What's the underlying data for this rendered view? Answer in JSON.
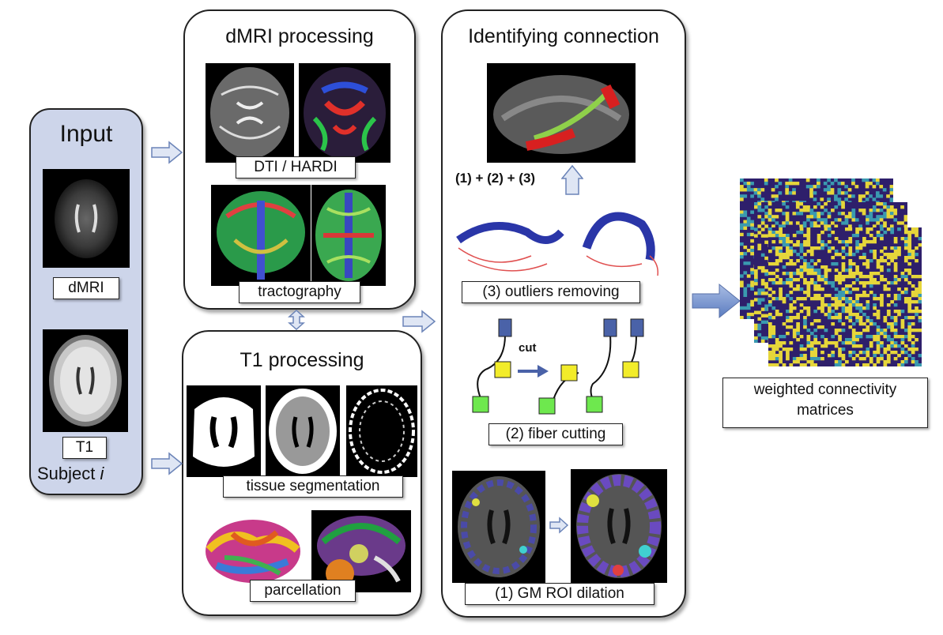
{
  "input": {
    "title": "Input",
    "dmri_label": "dMRI",
    "t1_label": "T1",
    "subject_label": "Subject",
    "subject_index": "i"
  },
  "dmri": {
    "title": "dMRI processing",
    "dti_label": "DTI / HARDI",
    "tract_label": "tractography"
  },
  "t1": {
    "title": "T1 processing",
    "tissue_label": "tissue segmentation",
    "parc_label": "parcellation"
  },
  "ident": {
    "title": "Identifying connection",
    "combo_label": "(1) + (2) + (3)",
    "outliers_label": "(3) outliers removing",
    "cut_word": "cut",
    "cutting_label": "(2) fiber cutting",
    "dilation_label": "(1) GM ROI dilation"
  },
  "output": {
    "label_line1": "weighted connectivity",
    "label_line2": "matrices"
  },
  "colors": {
    "input_panel": "#cdd5ea",
    "arrow_fill": "#dfe6f4",
    "arrow_stroke": "#6b84b8",
    "node_blue": "#4a62a8",
    "node_yellow": "#f2ec2a",
    "node_green": "#6ee84e",
    "matrix_dark": "#2e1f6b",
    "matrix_teal": "#3a9ab0",
    "matrix_yellow": "#e6d63a"
  }
}
